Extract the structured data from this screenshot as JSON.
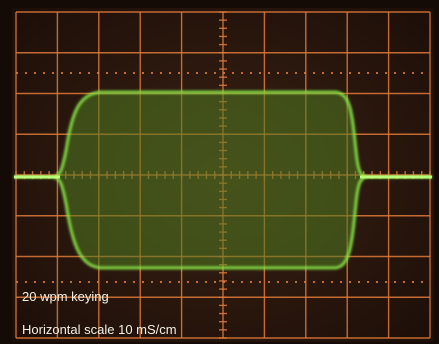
{
  "labels": {
    "caption": "20 wpm keying",
    "scale": "Horizontal scale 10 mS/cm"
  }
}
